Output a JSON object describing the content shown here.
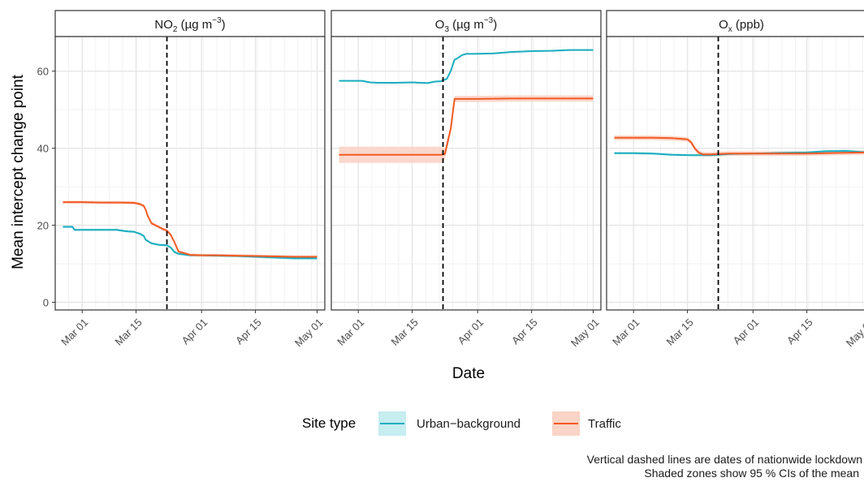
{
  "chart_data": {
    "type": "line",
    "ylabel": "Mean intercept change point",
    "xlabel": "Date",
    "y_ticks": [
      "0",
      "20",
      "40",
      "60"
    ],
    "y_tick_values": [
      0,
      20,
      40,
      60
    ],
    "ylim": [
      -2,
      69
    ],
    "x_ticks": [
      "Mar 01",
      "Mar 15",
      "Apr 01",
      "Apr 15",
      "May 01"
    ],
    "x_tick_days": [
      0,
      14,
      31,
      45,
      61
    ],
    "x_day_zero": "Mar 01",
    "xlim": [
      -7,
      63
    ],
    "grid": true,
    "lockdown_day": 22,
    "legend": {
      "title": "Site type",
      "position": "bottom",
      "entries": [
        {
          "label": "Urban−background",
          "color": "#1AADBF",
          "fill": "#C6EDF0"
        },
        {
          "label": "Traffic",
          "color": "#F25A22",
          "fill": "#FAD4C6"
        }
      ]
    },
    "panels": [
      {
        "title_main": "NO",
        "title_sub": "2",
        "title_rest": " (µg m",
        "title_sup": "−3",
        "title_end": ")",
        "series": [
          {
            "name": "Urban−background",
            "x": [
              -5,
              -2.5,
              -2,
              0,
              5,
              9,
              11,
              12,
              13.5,
              14,
              15,
              16,
              16.5,
              18,
              20,
              22,
              23,
              24,
              25,
              28,
              31,
              35,
              40,
              45,
              50,
              55,
              61
            ],
            "y": [
              19.6,
              19.6,
              18.8,
              18.8,
              18.8,
              18.8,
              18.5,
              18.4,
              18.3,
              18.1,
              17.8,
              17.2,
              16.2,
              15.3,
              14.9,
              14.8,
              14.2,
              13.0,
              12.6,
              12.2,
              12.2,
              12.1,
              12.0,
              11.8,
              11.6,
              11.4,
              11.4
            ],
            "ci": 0.3
          },
          {
            "name": "Traffic",
            "x": [
              -5,
              0,
              5,
              10,
              13.5,
              14,
              15,
              16,
              16.5,
              17,
              18,
              20,
              21,
              22,
              23,
              24,
              25,
              28,
              31,
              35,
              40,
              45,
              50,
              55,
              61
            ],
            "y": [
              26.0,
              26.0,
              25.9,
              25.9,
              25.8,
              25.7,
              25.5,
              25.0,
              24.0,
              22.5,
              20.5,
              19.5,
              19.0,
              18.6,
              17.5,
              15.5,
              13.2,
              12.3,
              12.2,
              12.2,
              12.1,
              12.0,
              11.9,
              11.8,
              11.8
            ],
            "ci": 0.4
          }
        ]
      },
      {
        "title_main": "O",
        "title_sub": "3",
        "title_rest": " (µg m",
        "title_sup": "−3",
        "title_end": ")",
        "series": [
          {
            "name": "Urban−background",
            "x": [
              -5,
              0,
              1,
              3,
              5,
              10,
              14,
              16,
              18,
              20,
              21.5,
              22,
              23,
              24,
              25,
              25.5,
              27,
              28,
              30,
              35,
              40,
              45,
              50,
              55,
              61
            ],
            "y": [
              57.5,
              57.5,
              57.5,
              57.1,
              57.0,
              57.0,
              57.1,
              57.0,
              56.9,
              57.3,
              57.4,
              57.6,
              58.0,
              60.0,
              63.0,
              63.2,
              64.2,
              64.5,
              64.5,
              64.6,
              65.0,
              65.2,
              65.3,
              65.5,
              65.5
            ],
            "ci": 0.2
          },
          {
            "name": "Traffic",
            "x": [
              -5,
              0,
              10,
              18,
              21.5,
              22.5,
              24,
              25,
              31,
              40,
              50,
              61
            ],
            "y": [
              38.3,
              38.3,
              38.3,
              38.3,
              38.3,
              38.5,
              45.0,
              52.8,
              52.8,
              52.9,
              52.9,
              52.9
            ],
            "ci_x": [
              -5,
              0,
              10,
              18,
              21.5,
              22.5,
              24,
              25,
              31,
              40,
              50,
              61
            ],
            "ci_w": [
              2.1,
              2.1,
              2.1,
              2.1,
              2.1,
              1.4,
              0.9,
              0.8,
              0.8,
              0.8,
              0.8,
              0.8
            ]
          }
        ]
      },
      {
        "title_main": "O",
        "title_sub": "x",
        "title_rest": " (ppb)",
        "title_sup": "",
        "title_end": "",
        "series": [
          {
            "name": "Urban−background",
            "x": [
              -5,
              0,
              5,
              10,
              15,
              20,
              22,
              25,
              31,
              40,
              45,
              50,
              55,
              61
            ],
            "y": [
              38.7,
              38.7,
              38.6,
              38.3,
              38.2,
              38.2,
              38.3,
              38.5,
              38.6,
              38.8,
              38.9,
              39.2,
              39.3,
              38.9
            ],
            "ci": 0.3
          },
          {
            "name": "Traffic",
            "x": [
              -5,
              0,
              5,
              10,
              14,
              15,
              16,
              17,
              18,
              20,
              22,
              25,
              31,
              40,
              45,
              50,
              55,
              61
            ],
            "y": [
              42.7,
              42.7,
              42.7,
              42.6,
              42.3,
              41.5,
              39.8,
              38.8,
              38.4,
              38.4,
              38.5,
              38.6,
              38.6,
              38.6,
              38.6,
              38.7,
              38.8,
              38.9
            ],
            "ci": 0.6
          }
        ]
      }
    ],
    "caption": [
      "Vertical dashed lines are dates of nationwide lockdown",
      "Shaded zones show 95 % CIs of the mean"
    ]
  }
}
